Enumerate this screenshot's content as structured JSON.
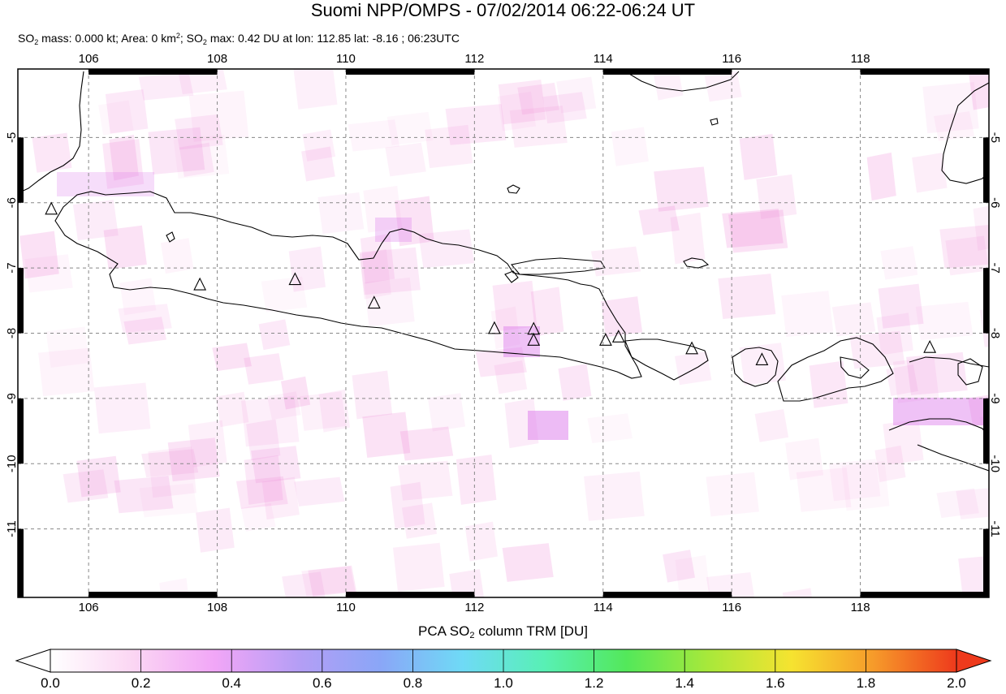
{
  "title": "Suomi NPP/OMPS - 07/02/2014 06:22-06:24 UT",
  "subtitle": {
    "so2_mass_label": "SO",
    "so2_mass_text": " mass: 0.000 kt; Area: 0 km",
    "area_sup": "2",
    "so2_max_prefix": "; SO",
    "so2_max_text": " max: 0.42 DU at lon: 112.85 lat: -8.16 ; 06:23UTC",
    "sub2": "2"
  },
  "map": {
    "lon_ticks": [
      "106",
      "108",
      "110",
      "112",
      "114",
      "116",
      "118"
    ],
    "lat_ticks": [
      "-5",
      "-6",
      "-7",
      "-8",
      "-9",
      "-10",
      "-11"
    ],
    "lon_range": [
      104.9,
      120.0
    ],
    "lat_range": [
      -12.05,
      -3.95
    ],
    "volcanoes": [
      {
        "lon": 105.42,
        "lat": -6.1
      },
      {
        "lon": 107.73,
        "lat": -7.26
      },
      {
        "lon": 109.21,
        "lat": -7.18
      },
      {
        "lon": 110.44,
        "lat": -7.54
      },
      {
        "lon": 112.31,
        "lat": -7.93
      },
      {
        "lon": 112.92,
        "lat": -7.94
      },
      {
        "lon": 112.92,
        "lat": -8.11
      },
      {
        "lon": 114.04,
        "lat": -8.11
      },
      {
        "lon": 114.24,
        "lat": -8.06
      },
      {
        "lon": 115.38,
        "lat": -8.24
      },
      {
        "lon": 116.47,
        "lat": -8.41
      },
      {
        "lon": 119.08,
        "lat": -8.22
      }
    ]
  },
  "colorbar": {
    "title_prefix": "PCA SO",
    "title_sub": "2",
    "title_suffix": " column TRM [DU]",
    "tick_labels": [
      "0.0",
      "0.2",
      "0.4",
      "0.6",
      "0.8",
      "1.0",
      "1.2",
      "1.4",
      "1.6",
      "1.8",
      "2.0"
    ],
    "range": [
      0.0,
      2.0
    ],
    "colors": [
      "#ffffff",
      "#fbd6f3",
      "#f1a6f7",
      "#b59ef5",
      "#8aa6f7",
      "#6fdaf6",
      "#58f0b5",
      "#53e85a",
      "#a9e83a",
      "#f6e330",
      "#f69a2a",
      "#ee3a1c"
    ]
  }
}
